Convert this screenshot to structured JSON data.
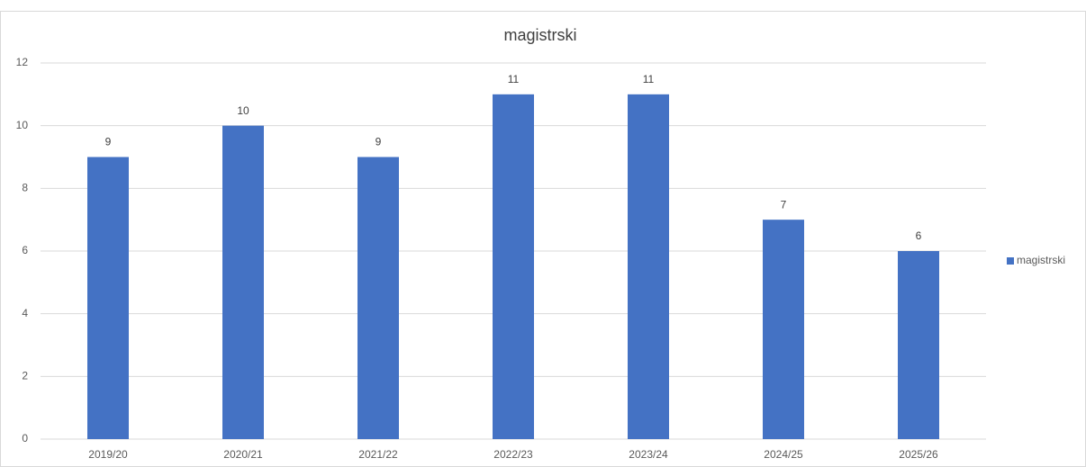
{
  "chart_data": {
    "type": "bar",
    "title": "magistrski",
    "categories": [
      "2019/20",
      "2020/21",
      "2021/22",
      "2022/23",
      "2023/24",
      "2024/25",
      "2025/26"
    ],
    "series": [
      {
        "name": "magistrski",
        "color": "#4472c4",
        "values": [
          9,
          10,
          9,
          11,
          11,
          7,
          6
        ]
      }
    ],
    "ylim": [
      0,
      12
    ],
    "yticks": [
      0,
      2,
      4,
      6,
      8,
      10,
      12
    ],
    "grid": true,
    "legend": "right"
  }
}
